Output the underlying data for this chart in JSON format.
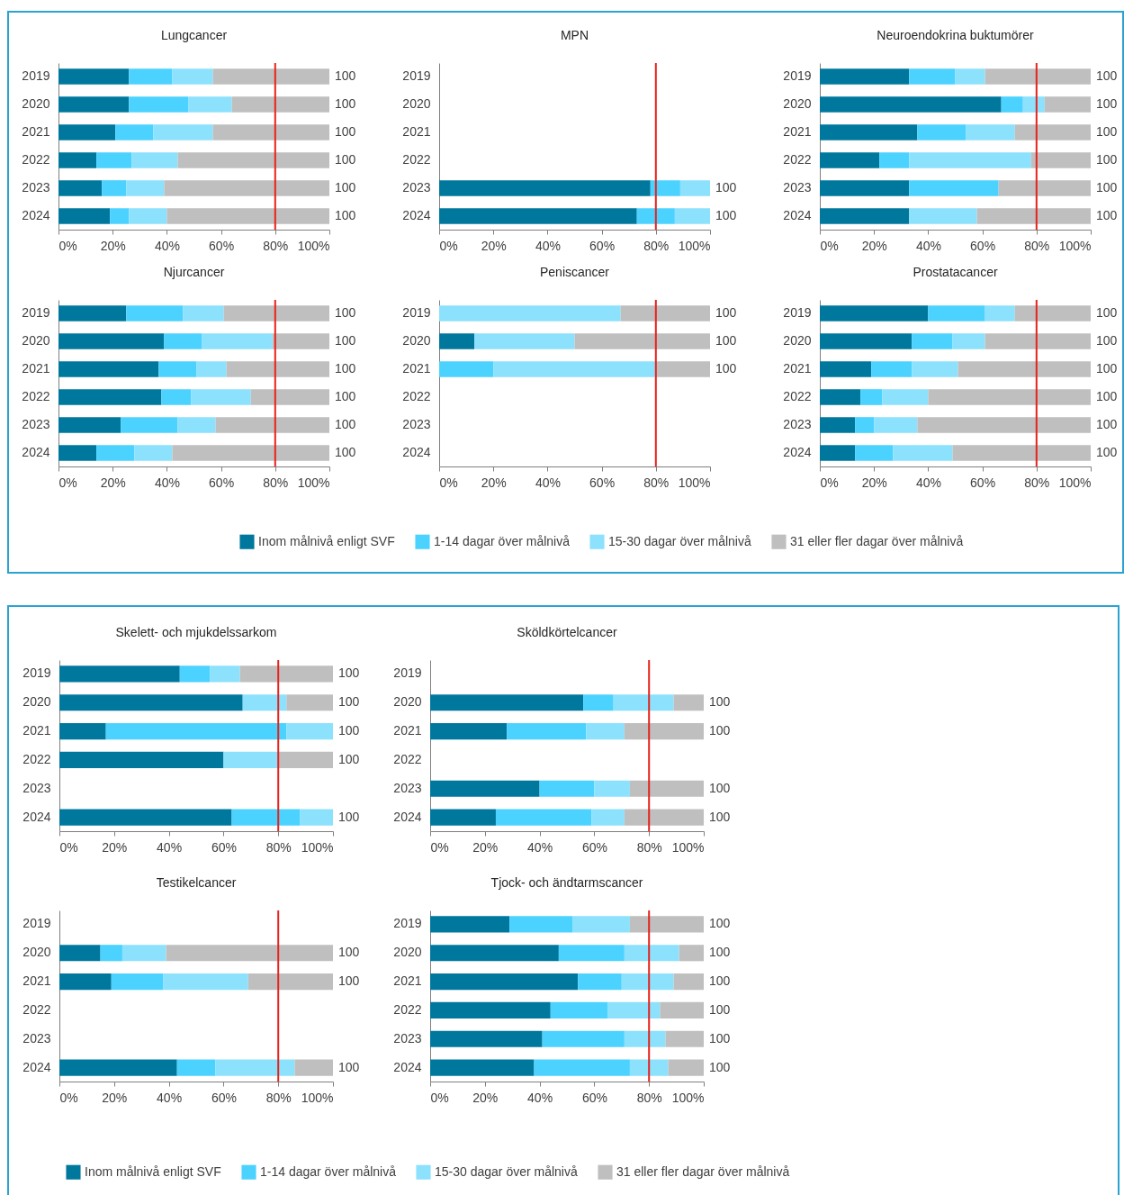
{
  "chart_data": [
    {
      "type": "bar",
      "orientation": "horizontal",
      "stacked": true,
      "title": "Lungcancer",
      "categories": [
        "2019",
        "2020",
        "2021",
        "2022",
        "2023",
        "2024"
      ],
      "series": [
        {
          "color": "#00789e",
          "values": [
            26,
            26,
            21,
            14,
            16,
            19
          ]
        },
        {
          "color": "#4cd2ff",
          "values": [
            16,
            22,
            14,
            13,
            9,
            7
          ]
        },
        {
          "color": "#8ce1fc",
          "values": [
            15,
            16,
            22,
            17,
            14,
            14
          ]
        },
        {
          "color": "#bfbfbf",
          "values": [
            43,
            36,
            43,
            56,
            61,
            60
          ]
        }
      ],
      "xlim": [
        0,
        100
      ],
      "xticks": [
        {
          "value": 0,
          "label": "0%"
        },
        {
          "value": 20,
          "label": "20%"
        },
        {
          "value": 40,
          "label": "40%"
        },
        {
          "value": 60,
          "label": "60%"
        },
        {
          "value": 80,
          "label": "80%"
        },
        {
          "value": 100,
          "label": "100%"
        }
      ],
      "totals": [
        "100",
        "100",
        "100",
        "100",
        "100",
        "100"
      ],
      "ref_lines": [
        {
          "axis": "x",
          "value": 80,
          "color": "#e8211b"
        }
      ]
    },
    {
      "type": "bar",
      "orientation": "horizontal",
      "stacked": true,
      "title": "MPN",
      "categories": [
        "2019",
        "2020",
        "2021",
        "2022",
        "2023",
        "2024"
      ],
      "series": [
        {
          "color": "#00789e",
          "values": [
            null,
            null,
            null,
            null,
            78,
            73
          ]
        },
        {
          "color": "#4cd2ff",
          "values": [
            null,
            null,
            null,
            null,
            11,
            14
          ]
        },
        {
          "color": "#8ce1fc",
          "values": [
            null,
            null,
            null,
            null,
            11,
            13
          ]
        },
        {
          "color": "#bfbfbf",
          "values": [
            null,
            null,
            null,
            null,
            0,
            0
          ]
        }
      ],
      "xlim": [
        0,
        100
      ],
      "xticks": [
        {
          "value": 0,
          "label": "0%"
        },
        {
          "value": 20,
          "label": "20%"
        },
        {
          "value": 40,
          "label": "40%"
        },
        {
          "value": 60,
          "label": "60%"
        },
        {
          "value": 80,
          "label": "80%"
        },
        {
          "value": 100,
          "label": "100%"
        }
      ],
      "totals": [
        null,
        null,
        null,
        null,
        "100",
        "100"
      ],
      "ref_lines": [
        {
          "axis": "x",
          "value": 80,
          "color": "#e8211b"
        }
      ]
    },
    {
      "type": "bar",
      "orientation": "horizontal",
      "stacked": true,
      "title": "Neuroendokrina buktumörer",
      "categories": [
        "2019",
        "2020",
        "2021",
        "2022",
        "2023",
        "2024"
      ],
      "series": [
        {
          "color": "#00789e",
          "values": [
            33,
            67,
            36,
            22,
            33,
            33
          ]
        },
        {
          "color": "#4cd2ff",
          "values": [
            17,
            8,
            18,
            11,
            33,
            0
          ]
        },
        {
          "color": "#8ce1fc",
          "values": [
            11,
            8,
            18,
            45,
            0,
            25
          ]
        },
        {
          "color": "#bfbfbf",
          "values": [
            39,
            17,
            28,
            22,
            34,
            42
          ]
        }
      ],
      "xlim": [
        0,
        100
      ],
      "xticks": [
        {
          "value": 0,
          "label": "0%"
        },
        {
          "value": 20,
          "label": "20%"
        },
        {
          "value": 40,
          "label": "40%"
        },
        {
          "value": 60,
          "label": "60%"
        },
        {
          "value": 80,
          "label": "80%"
        },
        {
          "value": 100,
          "label": "100%"
        }
      ],
      "totals": [
        "100",
        "100",
        "100",
        "100",
        "100",
        "100"
      ],
      "ref_lines": [
        {
          "axis": "x",
          "value": 80,
          "color": "#e8211b"
        }
      ]
    },
    {
      "type": "bar",
      "orientation": "horizontal",
      "stacked": true,
      "title": "Njurcancer",
      "categories": [
        "2019",
        "2020",
        "2021",
        "2022",
        "2023",
        "2024"
      ],
      "series": [
        {
          "color": "#00789e",
          "values": [
            25,
            39,
            37,
            38,
            23,
            14
          ]
        },
        {
          "color": "#4cd2ff",
          "values": [
            21,
            14,
            14,
            11,
            21,
            14
          ]
        },
        {
          "color": "#8ce1fc",
          "values": [
            15,
            26,
            11,
            22,
            14,
            14
          ]
        },
        {
          "color": "#bfbfbf",
          "values": [
            39,
            21,
            38,
            29,
            42,
            58
          ]
        }
      ],
      "xlim": [
        0,
        100
      ],
      "xticks": [
        {
          "value": 0,
          "label": "0%"
        },
        {
          "value": 20,
          "label": "20%"
        },
        {
          "value": 40,
          "label": "40%"
        },
        {
          "value": 60,
          "label": "60%"
        },
        {
          "value": 80,
          "label": "80%"
        },
        {
          "value": 100,
          "label": "100%"
        }
      ],
      "totals": [
        "100",
        "100",
        "100",
        "100",
        "100",
        "100"
      ],
      "ref_lines": [
        {
          "axis": "x",
          "value": 80,
          "color": "#e8211b"
        }
      ]
    },
    {
      "type": "bar",
      "orientation": "horizontal",
      "stacked": true,
      "title": "Peniscancer",
      "categories": [
        "2019",
        "2020",
        "2021",
        "2022",
        "2023",
        "2024"
      ],
      "legend": "bottom",
      "series": [
        {
          "name": "Inom målnivå enligt SVF",
          "color": "#00789e",
          "values": [
            0,
            13,
            0,
            null,
            null,
            null
          ]
        },
        {
          "name": "1-14 dagar över målnivå",
          "color": "#4cd2ff",
          "values": [
            0,
            0,
            20,
            null,
            null,
            null
          ]
        },
        {
          "name": "15-30 dagar över målnivå",
          "color": "#8ce1fc",
          "values": [
            67,
            37,
            60,
            null,
            null,
            null
          ]
        },
        {
          "name": "31 eller fler dagar över målnivå",
          "color": "#bfbfbf",
          "values": [
            33,
            50,
            20,
            null,
            null,
            null
          ]
        }
      ],
      "xlim": [
        0,
        100
      ],
      "xticks": [
        {
          "value": 0,
          "label": "0%"
        },
        {
          "value": 20,
          "label": "20%"
        },
        {
          "value": 40,
          "label": "40%"
        },
        {
          "value": 60,
          "label": "60%"
        },
        {
          "value": 80,
          "label": "80%"
        },
        {
          "value": 100,
          "label": "100%"
        }
      ],
      "totals": [
        "100",
        "100",
        "100",
        null,
        null,
        null
      ],
      "ref_lines": [
        {
          "axis": "x",
          "value": 80,
          "color": "#e8211b"
        }
      ]
    },
    {
      "type": "bar",
      "orientation": "horizontal",
      "stacked": true,
      "title": "Prostatacancer",
      "categories": [
        "2019",
        "2020",
        "2021",
        "2022",
        "2023",
        "2024"
      ],
      "series": [
        {
          "color": "#00789e",
          "values": [
            40,
            34,
            19,
            15,
            13,
            13
          ]
        },
        {
          "color": "#4cd2ff",
          "values": [
            21,
            15,
            15,
            8,
            7,
            14
          ]
        },
        {
          "color": "#8ce1fc",
          "values": [
            11,
            12,
            17,
            17,
            16,
            22
          ]
        },
        {
          "color": "#bfbfbf",
          "values": [
            28,
            39,
            49,
            60,
            64,
            51
          ]
        }
      ],
      "xlim": [
        0,
        100
      ],
      "xticks": [
        {
          "value": 0,
          "label": "0%"
        },
        {
          "value": 20,
          "label": "20%"
        },
        {
          "value": 40,
          "label": "40%"
        },
        {
          "value": 60,
          "label": "60%"
        },
        {
          "value": 80,
          "label": "80%"
        },
        {
          "value": 100,
          "label": "100%"
        }
      ],
      "totals": [
        "100",
        "100",
        "100",
        "100",
        "100",
        "100"
      ],
      "ref_lines": [
        {
          "axis": "x",
          "value": 80,
          "color": "#e8211b"
        }
      ]
    },
    {
      "type": "bar",
      "orientation": "horizontal",
      "stacked": true,
      "title": "Skelett- och mjukdelssarkom",
      "categories": [
        "2019",
        "2020",
        "2021",
        "2022",
        "2023",
        "2024"
      ],
      "series": [
        {
          "color": "#00789e",
          "values": [
            44,
            67,
            17,
            60,
            null,
            63
          ]
        },
        {
          "color": "#4cd2ff",
          "values": [
            11,
            0,
            66,
            0,
            null,
            25
          ]
        },
        {
          "color": "#8ce1fc",
          "values": [
            11,
            16,
            17,
            20,
            null,
            12
          ]
        },
        {
          "color": "#bfbfbf",
          "values": [
            34,
            17,
            0,
            20,
            null,
            0
          ]
        }
      ],
      "xlim": [
        0,
        100
      ],
      "xticks": [
        {
          "value": 0,
          "label": "0%"
        },
        {
          "value": 20,
          "label": "20%"
        },
        {
          "value": 40,
          "label": "40%"
        },
        {
          "value": 60,
          "label": "60%"
        },
        {
          "value": 80,
          "label": "80%"
        },
        {
          "value": 100,
          "label": "100%"
        }
      ],
      "totals": [
        "100",
        "100",
        "100",
        "100",
        null,
        "100"
      ],
      "ref_lines": [
        {
          "axis": "x",
          "value": 80,
          "color": "#e8211b"
        }
      ]
    },
    {
      "type": "bar",
      "orientation": "horizontal",
      "stacked": true,
      "title": "Sköldkörtelcancer",
      "categories": [
        "2019",
        "2020",
        "2021",
        "2022",
        "2023",
        "2024"
      ],
      "series": [
        {
          "color": "#00789e",
          "values": [
            null,
            56,
            28,
            null,
            40,
            24
          ]
        },
        {
          "color": "#4cd2ff",
          "values": [
            null,
            11,
            29,
            null,
            20,
            35
          ]
        },
        {
          "color": "#8ce1fc",
          "values": [
            null,
            22,
            14,
            null,
            13,
            12
          ]
        },
        {
          "color": "#bfbfbf",
          "values": [
            null,
            11,
            29,
            null,
            27,
            29
          ]
        }
      ],
      "xlim": [
        0,
        100
      ],
      "xticks": [
        {
          "value": 0,
          "label": "0%"
        },
        {
          "value": 20,
          "label": "20%"
        },
        {
          "value": 40,
          "label": "40%"
        },
        {
          "value": 60,
          "label": "60%"
        },
        {
          "value": 80,
          "label": "80%"
        },
        {
          "value": 100,
          "label": "100%"
        }
      ],
      "totals": [
        null,
        "100",
        "100",
        null,
        "100",
        "100"
      ],
      "ref_lines": [
        {
          "axis": "x",
          "value": 80,
          "color": "#e8211b"
        }
      ]
    },
    {
      "type": "bar",
      "orientation": "horizontal",
      "stacked": true,
      "title": "Testikelcancer",
      "categories": [
        "2019",
        "2020",
        "2021",
        "2022",
        "2023",
        "2024"
      ],
      "legend": "bottom",
      "series": [
        {
          "name": "Inom målnivå enligt SVF",
          "color": "#00789e",
          "values": [
            null,
            15,
            19,
            null,
            null,
            43
          ]
        },
        {
          "name": "1-14 dagar över målnivå",
          "color": "#4cd2ff",
          "values": [
            null,
            8,
            19,
            null,
            null,
            14
          ]
        },
        {
          "name": "15-30 dagar över målnivå",
          "color": "#8ce1fc",
          "values": [
            null,
            16,
            31,
            null,
            null,
            29
          ]
        },
        {
          "name": "31 eller fler dagar över målnivå",
          "color": "#bfbfbf",
          "values": [
            null,
            61,
            31,
            null,
            null,
            14
          ]
        }
      ],
      "xlim": [
        0,
        100
      ],
      "xticks": [
        {
          "value": 0,
          "label": "0%"
        },
        {
          "value": 20,
          "label": "20%"
        },
        {
          "value": 40,
          "label": "40%"
        },
        {
          "value": 60,
          "label": "60%"
        },
        {
          "value": 80,
          "label": "80%"
        },
        {
          "value": 100,
          "label": "100%"
        }
      ],
      "totals": [
        null,
        "100",
        "100",
        null,
        null,
        "100"
      ],
      "ref_lines": [
        {
          "axis": "x",
          "value": 80,
          "color": "#e8211b"
        }
      ]
    },
    {
      "type": "bar",
      "orientation": "horizontal",
      "stacked": true,
      "title": "Tjock- och ändtarmscancer",
      "categories": [
        "2019",
        "2020",
        "2021",
        "2022",
        "2023",
        "2024"
      ],
      "series": [
        {
          "color": "#00789e",
          "values": [
            29,
            47,
            54,
            44,
            41,
            38
          ]
        },
        {
          "color": "#4cd2ff",
          "values": [
            23,
            24,
            16,
            21,
            30,
            35
          ]
        },
        {
          "color": "#8ce1fc",
          "values": [
            21,
            20,
            19,
            19,
            15,
            14
          ]
        },
        {
          "color": "#bfbfbf",
          "values": [
            27,
            9,
            11,
            16,
            14,
            13
          ]
        }
      ],
      "xlim": [
        0,
        100
      ],
      "xticks": [
        {
          "value": 0,
          "label": "0%"
        },
        {
          "value": 20,
          "label": "20%"
        },
        {
          "value": 40,
          "label": "40%"
        },
        {
          "value": 60,
          "label": "60%"
        },
        {
          "value": 80,
          "label": "80%"
        },
        {
          "value": 100,
          "label": "100%"
        }
      ],
      "totals": [
        "100",
        "100",
        "100",
        "100",
        "100",
        "100"
      ],
      "ref_lines": [
        {
          "axis": "x",
          "value": 80,
          "color": "#e8211b"
        }
      ]
    }
  ]
}
